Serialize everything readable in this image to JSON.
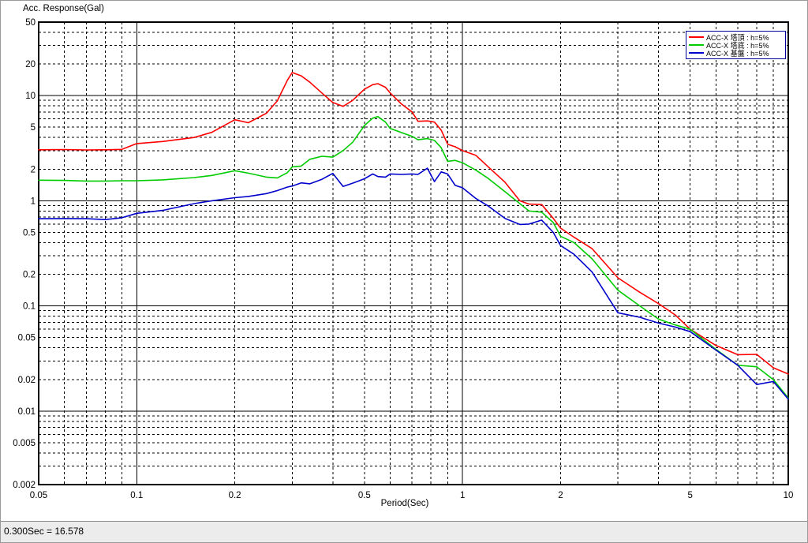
{
  "window": {
    "status_bar": {
      "text": "0.300Sec = 16.578"
    }
  },
  "colors": {
    "background": "#ffffff",
    "status_bar_bg": "#ececec",
    "grid": "#000000",
    "legend_border": "#000099",
    "series_red": "#ff0000",
    "series_green": "#00cc00",
    "series_blue": "#0000cc"
  },
  "chart_data": {
    "type": "line",
    "title": "",
    "ylabel": "Acc. Response(Gal)",
    "xlabel": "Period(Sec)",
    "x_scale": "log",
    "y_scale": "log",
    "xlim": [
      0.05,
      10
    ],
    "ylim": [
      0.002,
      50
    ],
    "grid": "minor log gridlines dashed, decade lines solid",
    "legend_position": "top-right",
    "x_ticks": [
      [
        0.05,
        "0.05"
      ],
      [
        0.1,
        "0.1"
      ],
      [
        0.2,
        "0.2"
      ],
      [
        0.5,
        "0.5"
      ],
      [
        1,
        "1"
      ],
      [
        2,
        "2"
      ],
      [
        5,
        "5"
      ],
      [
        10,
        "10"
      ]
    ],
    "y_ticks": [
      [
        50,
        "50"
      ],
      [
        20,
        "20"
      ],
      [
        10,
        "10"
      ],
      [
        5,
        "5"
      ],
      [
        2,
        "2"
      ],
      [
        1,
        "1"
      ],
      [
        0.5,
        "0.5"
      ],
      [
        0.2,
        "0.2"
      ],
      [
        0.1,
        "0.1"
      ],
      [
        0.05,
        "0.05"
      ],
      [
        0.02,
        "0.02"
      ],
      [
        0.01,
        "0.01"
      ],
      [
        0.005,
        "0.005"
      ],
      [
        0.002,
        "0.002"
      ]
    ],
    "x_major_lines": [
      0.1,
      1
    ],
    "y_major_lines": [
      10,
      1,
      0.1,
      0.01
    ],
    "x": [
      0.05,
      0.06,
      0.07,
      0.08,
      0.09,
      0.1,
      0.12,
      0.15,
      0.17,
      0.2,
      0.22,
      0.25,
      0.27,
      0.29,
      0.3,
      0.32,
      0.34,
      0.37,
      0.4,
      0.43,
      0.46,
      0.5,
      0.53,
      0.55,
      0.58,
      0.6,
      0.65,
      0.7,
      0.73,
      0.78,
      0.82,
      0.86,
      0.9,
      0.95,
      1.0,
      1.1,
      1.2,
      1.35,
      1.5,
      1.6,
      1.75,
      1.9,
      2.0,
      2.2,
      2.5,
      3.0,
      3.5,
      4.0,
      4.5,
      5.0,
      6.0,
      7.0,
      8.0,
      9.0,
      10.0
    ],
    "series": [
      {
        "name": "ACC-X 塔頂 : h=5%",
        "color": "#ff0000",
        "peak_note": "peak 16.578 Gal at 0.300 Sec",
        "values": [
          3.05,
          3.07,
          3.04,
          3.05,
          3.08,
          3.5,
          3.66,
          4.0,
          4.47,
          5.9,
          5.52,
          6.8,
          8.9,
          14.0,
          16.578,
          15.4,
          13.4,
          10.6,
          8.6,
          7.9,
          9.0,
          11.5,
          12.7,
          13.0,
          12.0,
          10.6,
          8.3,
          7.0,
          5.7,
          5.75,
          5.6,
          4.7,
          3.45,
          3.26,
          3.0,
          2.7,
          2.1,
          1.5,
          1.0,
          0.93,
          0.92,
          0.68,
          0.55,
          0.45,
          0.35,
          0.185,
          0.135,
          0.105,
          0.082,
          0.06,
          0.042,
          0.0344,
          0.0346,
          0.0258,
          0.0225
        ]
      },
      {
        "name": "ACC-X 塔底 : h=5%",
        "color": "#00cc00",
        "values": [
          1.57,
          1.56,
          1.54,
          1.54,
          1.55,
          1.55,
          1.58,
          1.66,
          1.74,
          1.93,
          1.83,
          1.68,
          1.65,
          1.85,
          2.1,
          2.14,
          2.48,
          2.65,
          2.6,
          3.0,
          3.6,
          5.2,
          6.1,
          6.32,
          5.6,
          4.87,
          4.45,
          4.1,
          3.8,
          3.9,
          3.75,
          3.2,
          2.37,
          2.42,
          2.3,
          1.95,
          1.63,
          1.22,
          0.94,
          0.8,
          0.78,
          0.62,
          0.46,
          0.4,
          0.28,
          0.141,
          0.1,
          0.0748,
          0.066,
          0.06,
          0.0386,
          0.0273,
          0.0264,
          0.0199,
          0.0133
        ]
      },
      {
        "name": "ACC-X 基盤 : h=5%",
        "color": "#0000cc",
        "values": [
          0.675,
          0.678,
          0.675,
          0.662,
          0.69,
          0.76,
          0.81,
          0.94,
          1.0,
          1.07,
          1.1,
          1.17,
          1.25,
          1.35,
          1.38,
          1.48,
          1.45,
          1.6,
          1.82,
          1.37,
          1.47,
          1.62,
          1.8,
          1.7,
          1.68,
          1.8,
          1.78,
          1.8,
          1.78,
          2.04,
          1.52,
          1.88,
          1.8,
          1.4,
          1.33,
          1.05,
          0.89,
          0.68,
          0.595,
          0.6,
          0.655,
          0.5,
          0.375,
          0.31,
          0.21,
          0.086,
          0.078,
          0.0686,
          0.063,
          0.057,
          0.038,
          0.0273,
          0.0179,
          0.0191,
          0.013
        ]
      }
    ]
  }
}
